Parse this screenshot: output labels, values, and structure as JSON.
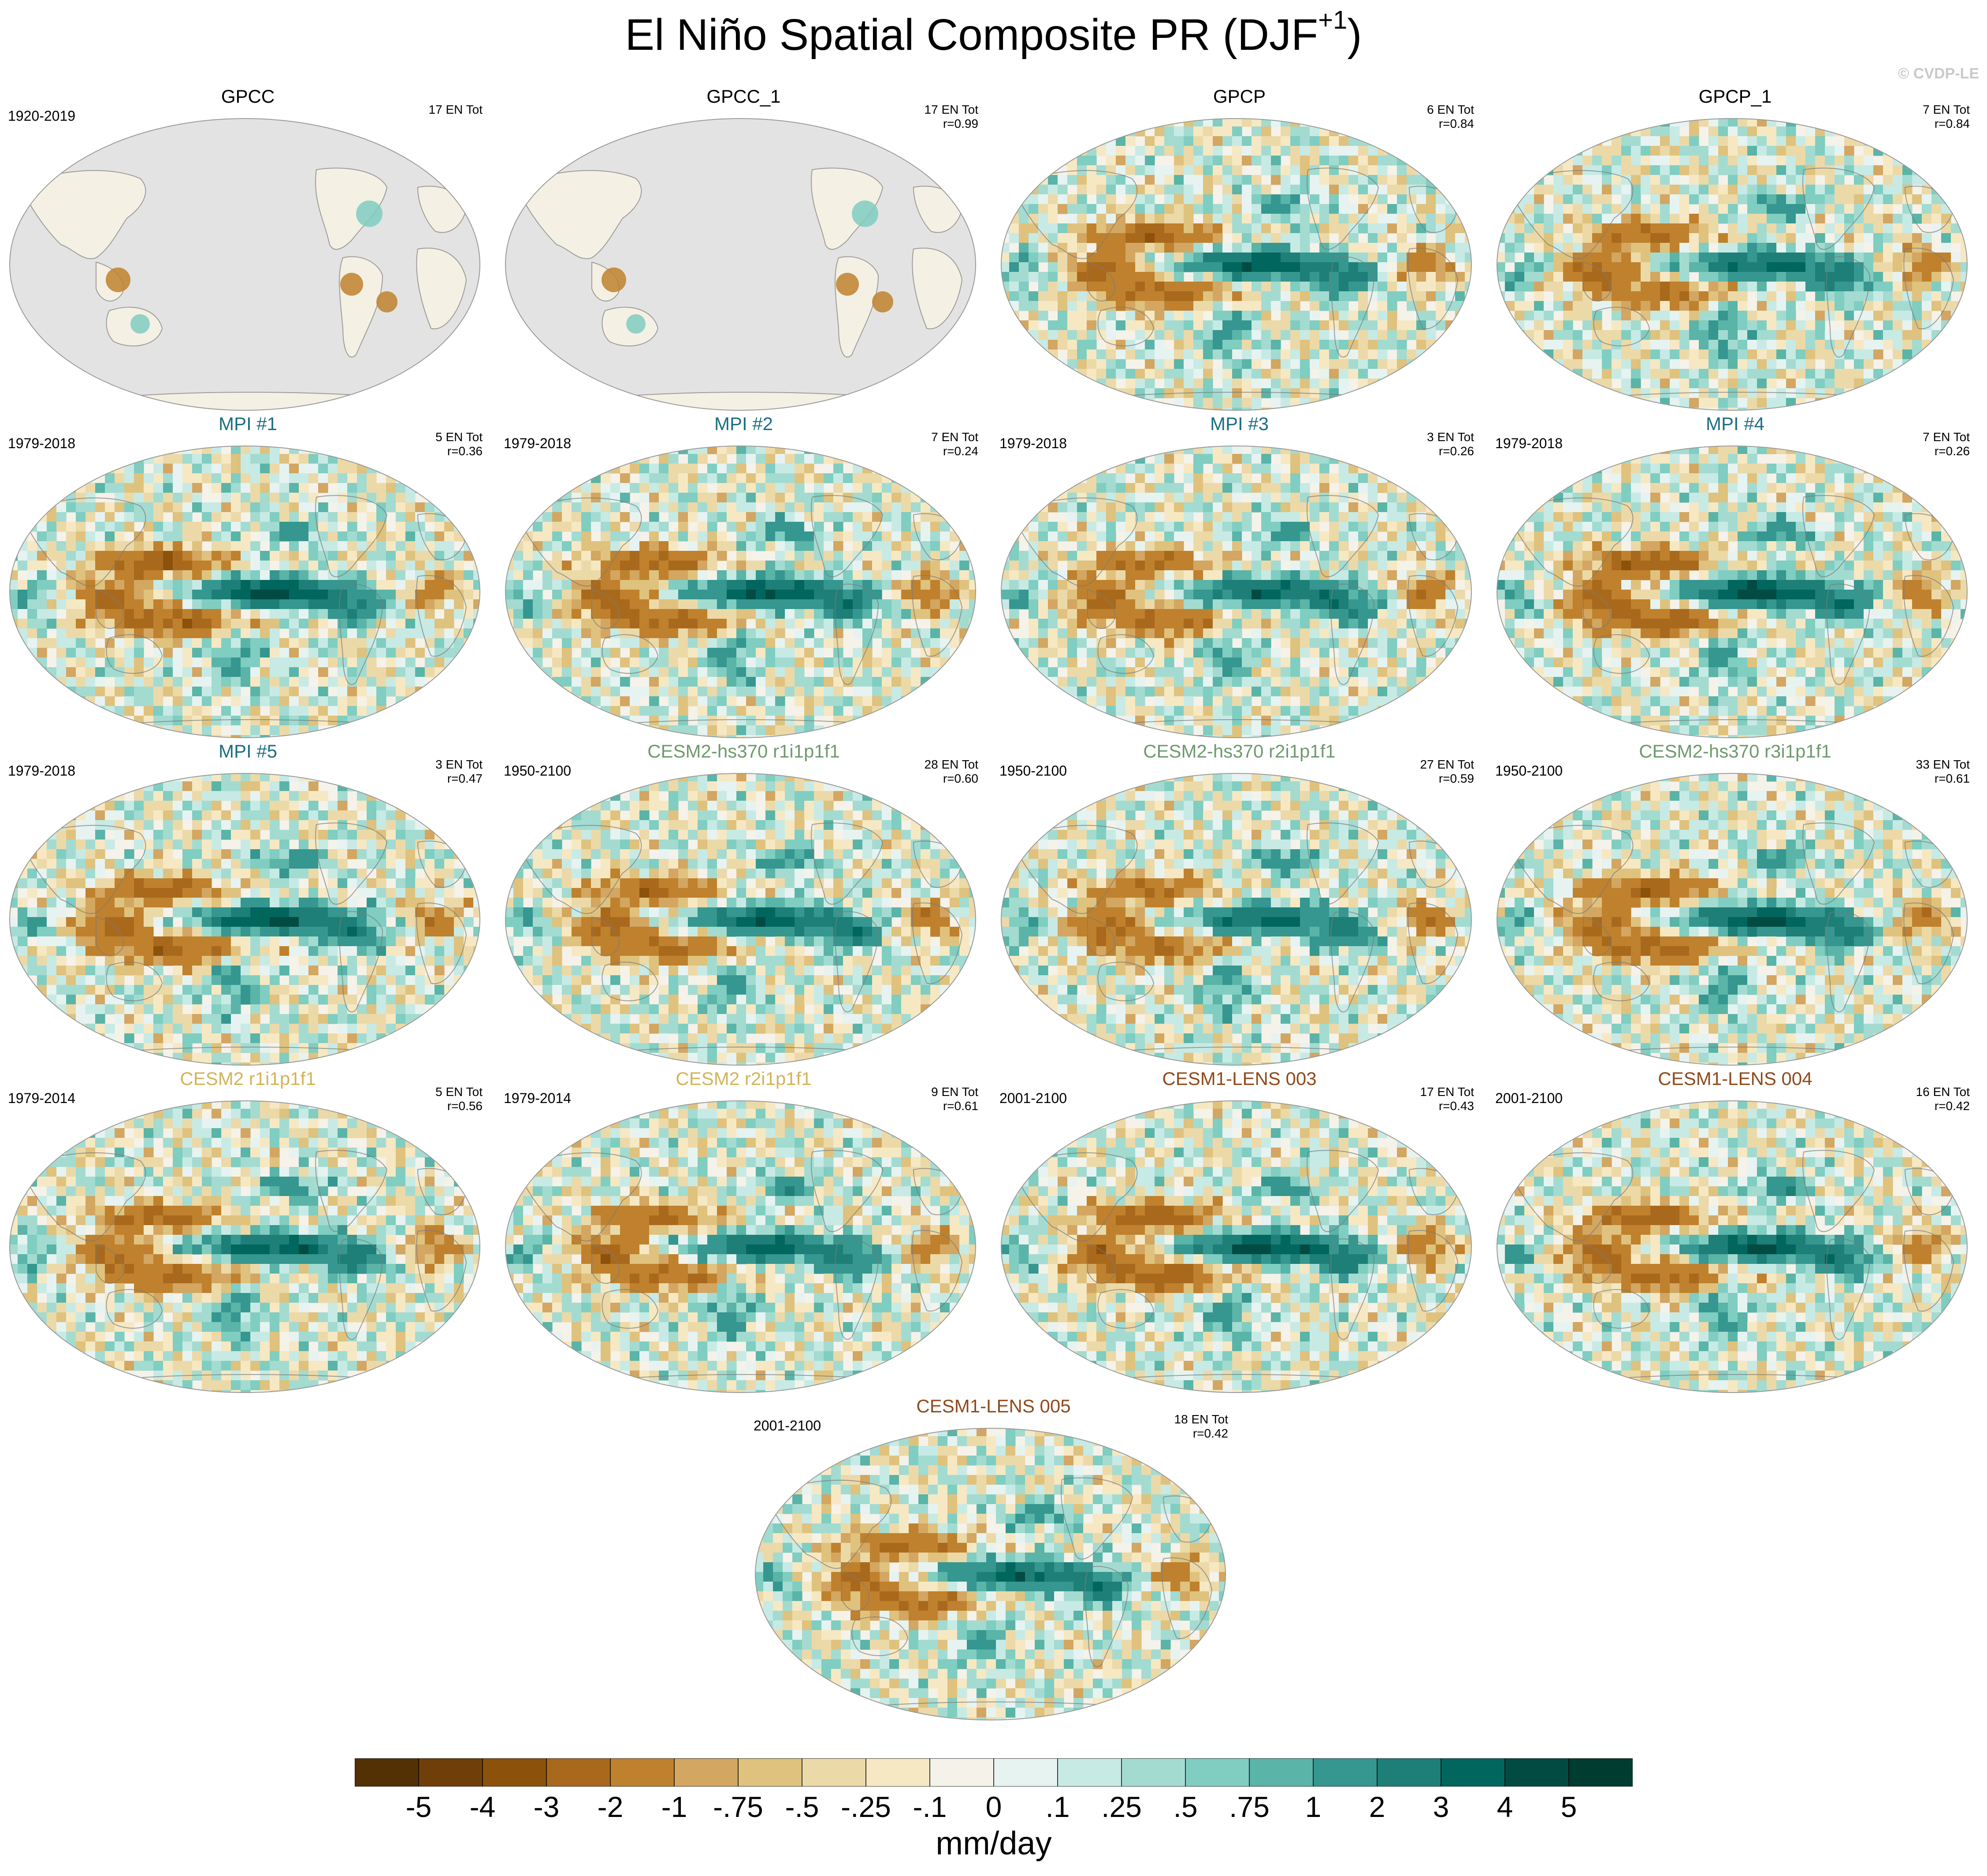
{
  "chart_data": {
    "type": "heatmap",
    "title_main": "El Niño Spatial Composite PR (DJF",
    "title_sup": "+1",
    "title_close": ")",
    "credit": "© CVDP-LE",
    "panels": [
      {
        "name": "GPCC",
        "period": "1920-2019",
        "stats": [
          "17 EN Tot"
        ],
        "title_color": "#000000",
        "land_only": true
      },
      {
        "name": "GPCC_1",
        "period": "",
        "stats": [
          "17 EN Tot",
          "r=0.99"
        ],
        "title_color": "#000000",
        "land_only": true
      },
      {
        "name": "GPCP",
        "period": "",
        "stats": [
          "6 EN Tot",
          "r=0.84"
        ],
        "title_color": "#000000",
        "land_only": false
      },
      {
        "name": "GPCP_1",
        "period": "",
        "stats": [
          "7 EN Tot",
          "r=0.84"
        ],
        "title_color": "#000000",
        "land_only": false
      },
      {
        "name": "MPI #1",
        "period": "1979-2018",
        "stats": [
          "5 EN Tot",
          "r=0.36"
        ],
        "title_color": "#1b6e82",
        "land_only": false
      },
      {
        "name": "MPI #2",
        "period": "1979-2018",
        "stats": [
          "7 EN Tot",
          "r=0.24"
        ],
        "title_color": "#1b6e82",
        "land_only": false
      },
      {
        "name": "MPI #3",
        "period": "1979-2018",
        "stats": [
          "3 EN Tot",
          "r=0.26"
        ],
        "title_color": "#1b6e82",
        "land_only": false
      },
      {
        "name": "MPI #4",
        "period": "1979-2018",
        "stats": [
          "7 EN Tot",
          "r=0.26"
        ],
        "title_color": "#1b6e82",
        "land_only": false
      },
      {
        "name": "MPI #5",
        "period": "1979-2018",
        "stats": [
          "3 EN Tot",
          "r=0.47"
        ],
        "title_color": "#1b6e82",
        "land_only": false
      },
      {
        "name": "CESM2-hs370 r1i1p1f1",
        "period": "1950-2100",
        "stats": [
          "28 EN Tot",
          "r=0.60"
        ],
        "title_color": "#6e9a6e",
        "land_only": false
      },
      {
        "name": "CESM2-hs370 r2i1p1f1",
        "period": "1950-2100",
        "stats": [
          "27 EN Tot",
          "r=0.59"
        ],
        "title_color": "#6e9a6e",
        "land_only": false
      },
      {
        "name": "CESM2-hs370 r3i1p1f1",
        "period": "1950-2100",
        "stats": [
          "33 EN Tot",
          "r=0.61"
        ],
        "title_color": "#6e9a6e",
        "land_only": false
      },
      {
        "name": "CESM2 r1i1p1f1",
        "period": "1979-2014",
        "stats": [
          "5 EN Tot",
          "r=0.56"
        ],
        "title_color": "#d2b45a",
        "land_only": false
      },
      {
        "name": "CESM2 r2i1p1f1",
        "period": "1979-2014",
        "stats": [
          "9 EN Tot",
          "r=0.61"
        ],
        "title_color": "#d2b45a",
        "land_only": false
      },
      {
        "name": "CESM1-LENS 003",
        "period": "2001-2100",
        "stats": [
          "17 EN Tot",
          "r=0.43"
        ],
        "title_color": "#8f4a1c",
        "land_only": false
      },
      {
        "name": "CESM1-LENS 004",
        "period": "2001-2100",
        "stats": [
          "16 EN Tot",
          "r=0.42"
        ],
        "title_color": "#8f4a1c",
        "land_only": false
      },
      {
        "name": "CESM1-LENS 005",
        "period": "2001-2100",
        "stats": [
          "18 EN Tot",
          "r=0.42"
        ],
        "title_color": "#8f4a1c",
        "land_only": false
      }
    ],
    "colorbar": {
      "labels": [
        "-5",
        "-4",
        "-3",
        "-2",
        "-1",
        "-.75",
        "-.5",
        "-.25",
        "-.1",
        "0",
        ".1",
        ".25",
        ".5",
        ".75",
        "1",
        "2",
        "3",
        "4",
        "5"
      ],
      "colors": [
        "#543005",
        "#6f3e09",
        "#8c510a",
        "#a9691d",
        "#bf812d",
        "#d3a661",
        "#dfc27d",
        "#ecd9a8",
        "#f6e8c3",
        "#f5f2ea",
        "#e6f3f1",
        "#c7eae5",
        "#a3dbd1",
        "#80cdc1",
        "#5ab4a8",
        "#35978f",
        "#1d7f77",
        "#01665e",
        "#024b43",
        "#003c30"
      ],
      "units": "mm/day"
    }
  }
}
